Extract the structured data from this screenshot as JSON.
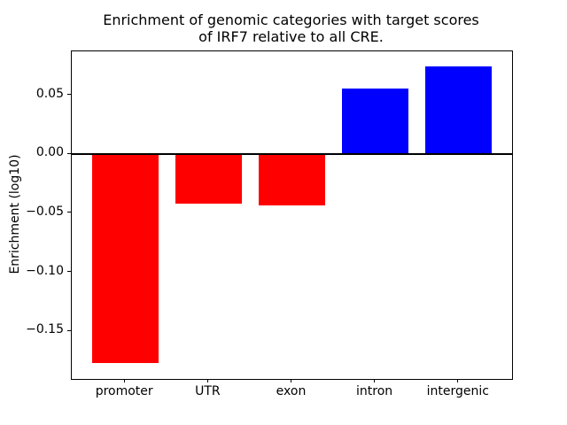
{
  "figure": {
    "background": "#ffffff",
    "text_color": "#000000"
  },
  "chart_data": {
    "type": "bar",
    "title": "Enrichment of genomic categories with target scores\nof IRF7 relative to all CRE.",
    "xlabel": "",
    "ylabel": "Enrichment (log10)",
    "categories": [
      "promoter",
      "UTR",
      "exon",
      "intron",
      "intergenic"
    ],
    "values": [
      -0.177,
      -0.042,
      -0.044,
      0.055,
      0.074
    ],
    "bar_colors": [
      "#ff0000",
      "#ff0000",
      "#ff0000",
      "#0000ff",
      "#0000ff"
    ],
    "negative_color": "#ff0000",
    "positive_color": "#0000ff",
    "bar_width": 0.8,
    "xlim": [
      -0.64,
      4.64
    ],
    "ylim": [
      -0.1905,
      0.0867
    ],
    "yticks": [
      {
        "value": 0.05,
        "label": "0.05"
      },
      {
        "value": 0.0,
        "label": "0.00"
      },
      {
        "value": -0.05,
        "label": "−0.05"
      },
      {
        "value": -0.1,
        "label": "−0.10"
      },
      {
        "value": -0.15,
        "label": "−0.15"
      }
    ],
    "zero_line": true,
    "grid": false,
    "legend": "none"
  }
}
